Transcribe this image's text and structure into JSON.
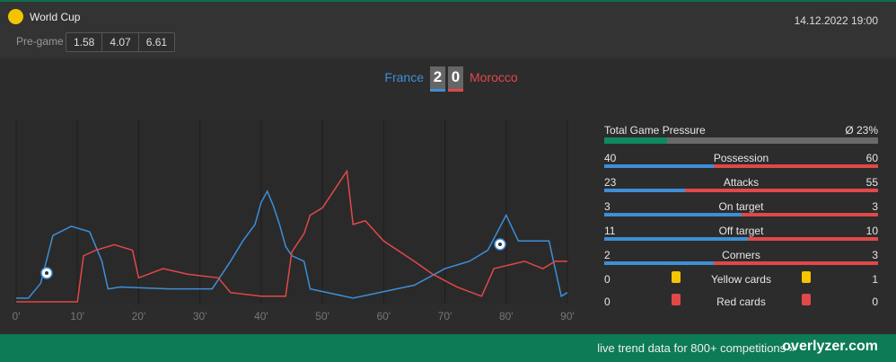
{
  "header": {
    "competition": "World Cup",
    "date": "14.12.2022 19:00",
    "pregame_label": "Pre-game",
    "odds": [
      1.58,
      4.07,
      6.61
    ]
  },
  "match": {
    "home": "France",
    "away": "Morocco",
    "home_score": 2,
    "away_score": 0
  },
  "chart_data": {
    "type": "line",
    "xlim": [
      0,
      90
    ],
    "ylim": [
      0,
      100
    ],
    "xticks": [
      {
        "value": 0,
        "label": "0'"
      },
      {
        "value": 10,
        "label": "10'"
      },
      {
        "value": 20,
        "label": "20'"
      },
      {
        "value": 30,
        "label": "30'"
      },
      {
        "value": 40,
        "label": "40'"
      },
      {
        "value": 50,
        "label": "50'"
      },
      {
        "value": 60,
        "label": "60'"
      },
      {
        "value": 70,
        "label": "70'"
      },
      {
        "value": 80,
        "label": "80'"
      },
      {
        "value": 90,
        "label": "90'"
      }
    ],
    "grid": true,
    "series": [
      {
        "name": "France",
        "color": "#3d8fd6",
        "x": [
          0,
          2,
          4,
          6,
          9,
          12,
          14,
          15,
          17,
          25,
          32,
          35,
          37,
          39,
          40,
          41,
          42,
          43,
          44,
          45,
          47,
          48,
          55,
          65,
          70,
          74,
          77,
          80,
          82,
          87,
          88,
          89,
          90
        ],
        "values": [
          3,
          3,
          11,
          37,
          42,
          39,
          23,
          8,
          9,
          8,
          8,
          23,
          34,
          43,
          55,
          61,
          53,
          43,
          31,
          26,
          23,
          8,
          3,
          10,
          19,
          23,
          29,
          48,
          34,
          34,
          19,
          4,
          6
        ]
      },
      {
        "name": "Morocco",
        "color": "#e24848",
        "x": [
          0,
          10,
          11,
          13,
          16,
          19,
          20,
          24,
          28,
          33,
          35,
          40,
          44,
          45,
          47,
          48,
          50,
          54,
          55,
          57,
          60,
          65,
          68,
          72,
          76,
          78,
          83,
          86,
          88,
          90
        ],
        "values": [
          1,
          1,
          26,
          29,
          32,
          29,
          14,
          19,
          16,
          14,
          6,
          4,
          4,
          28,
          38,
          48,
          52,
          72,
          43,
          45,
          34,
          23,
          16,
          9,
          4,
          19,
          23,
          19,
          23,
          23
        ]
      }
    ]
  },
  "stats": {
    "pressure": {
      "title": "Total Game Pressure",
      "value": 23,
      "label": "Ø 23%"
    },
    "rows": [
      {
        "name": "Possession",
        "home": 40,
        "away": 60
      },
      {
        "name": "Attacks",
        "home": 23,
        "away": 55
      },
      {
        "name": "On target",
        "home": 3,
        "away": 3
      },
      {
        "name": "Off target",
        "home": 11,
        "away": 10
      },
      {
        "name": "Corners",
        "home": 2,
        "away": 3
      }
    ],
    "cards": [
      {
        "name": "Yellow cards",
        "home": 0,
        "away": 1
      },
      {
        "name": "Red cards",
        "home": 0,
        "away": 0
      }
    ]
  },
  "footer": {
    "text": "live trend data for 800+ competitions »",
    "brand": "overlyzer.com"
  }
}
